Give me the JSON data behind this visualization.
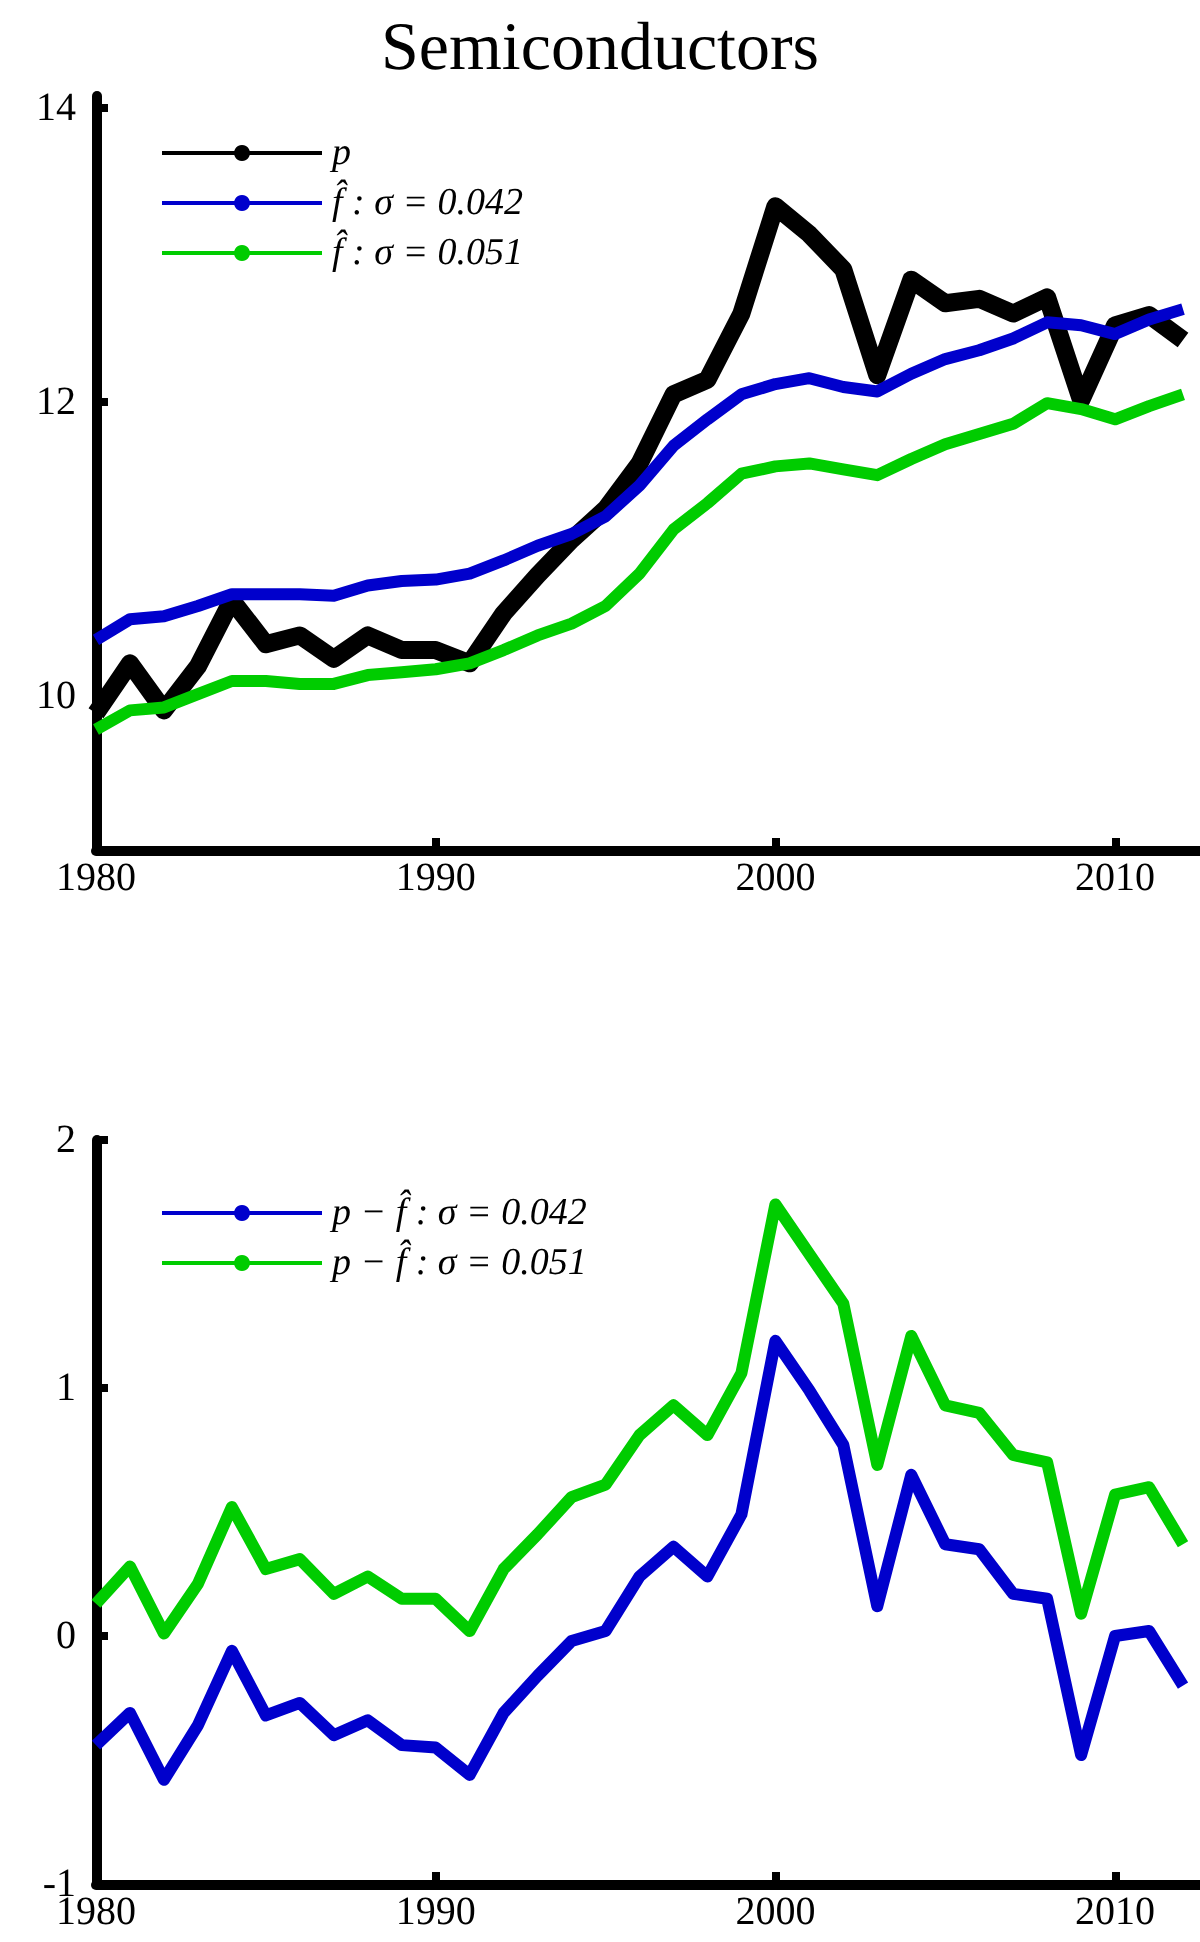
{
  "chart_data": [
    {
      "type": "line",
      "title": "Semiconductors",
      "x": [
        1980,
        1981,
        1982,
        1983,
        1984,
        1985,
        1986,
        1987,
        1988,
        1989,
        1990,
        1991,
        1992,
        1993,
        1994,
        1995,
        1996,
        1997,
        1998,
        1999,
        2000,
        2001,
        2002,
        2003,
        2004,
        2005,
        2006,
        2007,
        2008,
        2009,
        2010,
        2011,
        2012
      ],
      "xlim": [
        1980,
        2012.5
      ],
      "xticks": [
        1980,
        1990,
        2000,
        2010
      ],
      "ylim": [
        8.95,
        14.08
      ],
      "yticks": [
        10,
        12,
        14
      ],
      "legend": "top left",
      "series": [
        {
          "name": "p",
          "color": "#000000",
          "values": [
            9.88,
            10.22,
            9.9,
            10.2,
            10.65,
            10.35,
            10.41,
            10.25,
            10.41,
            10.31,
            10.31,
            10.22,
            10.56,
            10.82,
            11.06,
            11.27,
            11.58,
            12.05,
            12.15,
            12.6,
            13.33,
            13.14,
            12.9,
            12.18,
            12.83,
            12.67,
            12.7,
            12.6,
            12.71,
            12.01,
            12.52,
            12.59,
            12.42
          ]
        },
        {
          "name": "f̂ : σ = 0.042",
          "color": "#0000cc",
          "values": [
            10.38,
            10.52,
            10.54,
            10.61,
            10.69,
            10.69,
            10.69,
            10.68,
            10.75,
            10.78,
            10.79,
            10.83,
            10.92,
            11.02,
            11.1,
            11.22,
            11.43,
            11.7,
            11.88,
            12.05,
            12.12,
            12.16,
            12.1,
            12.07,
            12.19,
            12.29,
            12.35,
            12.43,
            12.54,
            12.52,
            12.46,
            12.56,
            12.63
          ]
        },
        {
          "name": "f̂ : σ = 0.051",
          "color": "#00cc00",
          "values": [
            9.77,
            9.9,
            9.92,
            10.01,
            10.1,
            10.1,
            10.08,
            10.08,
            10.14,
            10.16,
            10.18,
            10.22,
            10.31,
            10.41,
            10.49,
            10.61,
            10.83,
            11.13,
            11.31,
            11.51,
            11.56,
            11.58,
            11.54,
            11.5,
            11.61,
            11.71,
            11.78,
            11.85,
            11.99,
            11.95,
            11.88,
            11.97,
            12.05
          ]
        }
      ]
    },
    {
      "type": "line",
      "x": [
        1980,
        1981,
        1982,
        1983,
        1984,
        1985,
        1986,
        1987,
        1988,
        1989,
        1990,
        1991,
        1992,
        1993,
        1994,
        1995,
        1996,
        1997,
        1998,
        1999,
        2000,
        2001,
        2002,
        2003,
        2004,
        2005,
        2006,
        2007,
        2008,
        2009,
        2010,
        2011,
        2012
      ],
      "xlim": [
        1980,
        2012.5
      ],
      "xticks": [
        1980,
        1990,
        2000,
        2010
      ],
      "ylim": [
        -1,
        2
      ],
      "yticks": [
        -1,
        0,
        1,
        2
      ],
      "legend": "top left",
      "series": [
        {
          "name": "p − f̂ : σ = 0.042",
          "color": "#0000cc",
          "values": [
            -0.44,
            -0.31,
            -0.58,
            -0.36,
            -0.06,
            -0.32,
            -0.27,
            -0.4,
            -0.34,
            -0.44,
            -0.45,
            -0.56,
            -0.31,
            -0.16,
            -0.02,
            0.02,
            0.24,
            0.36,
            0.24,
            0.49,
            1.19,
            0.99,
            0.77,
            0.12,
            0.65,
            0.37,
            0.35,
            0.17,
            0.15,
            -0.48,
            0.0,
            0.02,
            -0.2
          ]
        },
        {
          "name": "p − f̂ : σ = 0.051",
          "color": "#00cc00",
          "values": [
            0.13,
            0.28,
            0.01,
            0.21,
            0.52,
            0.27,
            0.31,
            0.17,
            0.24,
            0.15,
            0.15,
            0.02,
            0.27,
            0.41,
            0.56,
            0.61,
            0.81,
            0.93,
            0.81,
            1.06,
            1.74,
            1.54,
            1.34,
            0.69,
            1.21,
            0.93,
            0.9,
            0.73,
            0.7,
            0.09,
            0.57,
            0.6,
            0.37
          ]
        }
      ]
    }
  ]
}
